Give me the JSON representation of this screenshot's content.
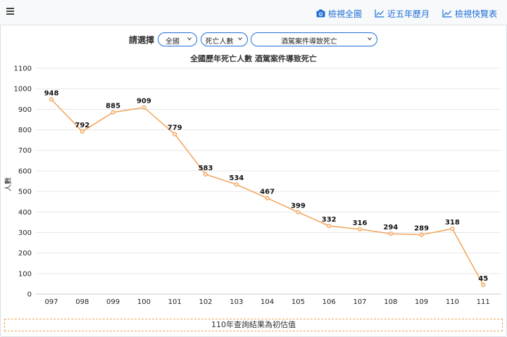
{
  "nav": {
    "menu_icon": "hamburger-icon",
    "links": [
      {
        "label": "檢視全圖",
        "icon": "camera-icon"
      },
      {
        "label": "近五年歷月",
        "icon": "area-chart-icon"
      },
      {
        "label": "檢視快覽表",
        "icon": "area-chart-icon"
      }
    ]
  },
  "selectors": {
    "label": "請選擇",
    "region": "全國",
    "metric": "死亡人數",
    "cause": "酒駕案件導致死亡"
  },
  "colors": {
    "accent": "#1e6fd9",
    "line": "#f0a45a",
    "point_fill": "#fde7d0"
  },
  "chart_data": {
    "type": "line",
    "title": "全國歷年死亡人數 酒駕案件導致死亡",
    "xlabel": "",
    "ylabel": "人數",
    "categories": [
      "097",
      "098",
      "099",
      "100",
      "101",
      "102",
      "103",
      "104",
      "105",
      "106",
      "107",
      "108",
      "109",
      "110",
      "111"
    ],
    "values": [
      948,
      792,
      885,
      909,
      779,
      583,
      534,
      467,
      399,
      332,
      316,
      294,
      289,
      318,
      45
    ],
    "yticks": [
      "0",
      "100",
      "200",
      "300",
      "400",
      "500",
      "600",
      "700",
      "800",
      "900",
      "1000",
      "1100"
    ],
    "ylim": [
      0,
      1100
    ],
    "grid": true,
    "legend": "none"
  },
  "footnote": "110年查詢結果為初估值"
}
